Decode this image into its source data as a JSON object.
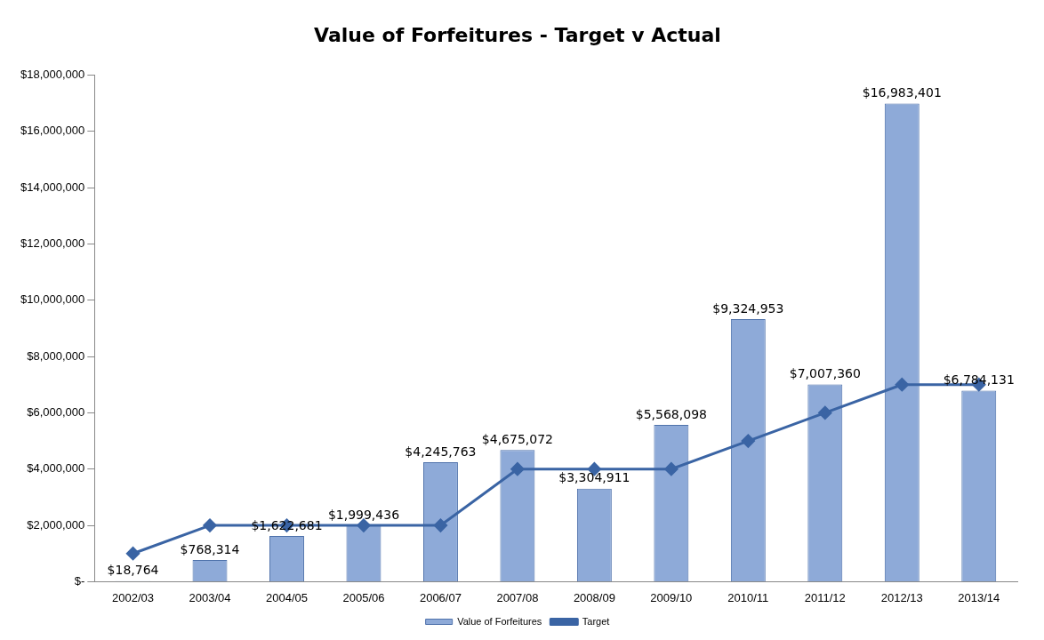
{
  "chart_data": {
    "type": "bar",
    "title": "Value of Forfeitures - Target v Actual",
    "categories": [
      "2002/03",
      "2003/04",
      "2004/05",
      "2005/06",
      "2006/07",
      "2007/08",
      "2008/09",
      "2009/10",
      "2010/11",
      "2011/12",
      "2012/13",
      "2013/14"
    ],
    "series": [
      {
        "name": "Value of Forfeitures",
        "color": "#8eaad8",
        "values": [
          18764,
          768314,
          1622681,
          1999436,
          4245763,
          4675072,
          3304911,
          5568098,
          9324953,
          7007360,
          16983401,
          6784131
        ],
        "value_labels": [
          "$18,764",
          "$768,314",
          "$1,622,681",
          "$1,999,436",
          "$4,245,763",
          "$4,675,072",
          "$3,304,911",
          "$5,568,098",
          "$9,324,953",
          "$7,007,360",
          "$16,983,401",
          "$6,784,131"
        ]
      },
      {
        "name": "Target",
        "type": "line",
        "color": "#3a64a4",
        "marker": "diamond",
        "values": [
          1000000,
          2000000,
          2000000,
          2000000,
          2000000,
          4000000,
          4000000,
          4000000,
          5000000,
          6000000,
          7000000,
          7000000
        ]
      }
    ],
    "ylim": [
      0,
      18000000
    ],
    "yticks": [
      {
        "value": 0,
        "label": "$-"
      },
      {
        "value": 2000000,
        "label": "$2,000,000"
      },
      {
        "value": 4000000,
        "label": "$4,000,000"
      },
      {
        "value": 6000000,
        "label": "$6,000,000"
      },
      {
        "value": 8000000,
        "label": "$8,000,000"
      },
      {
        "value": 10000000,
        "label": "$10,000,000"
      },
      {
        "value": 12000000,
        "label": "$12,000,000"
      },
      {
        "value": 14000000,
        "label": "$14,000,000"
      },
      {
        "value": 16000000,
        "label": "$16,000,000"
      },
      {
        "value": 18000000,
        "label": "$18,000,000"
      }
    ],
    "grid": false,
    "legend": "bottom"
  }
}
